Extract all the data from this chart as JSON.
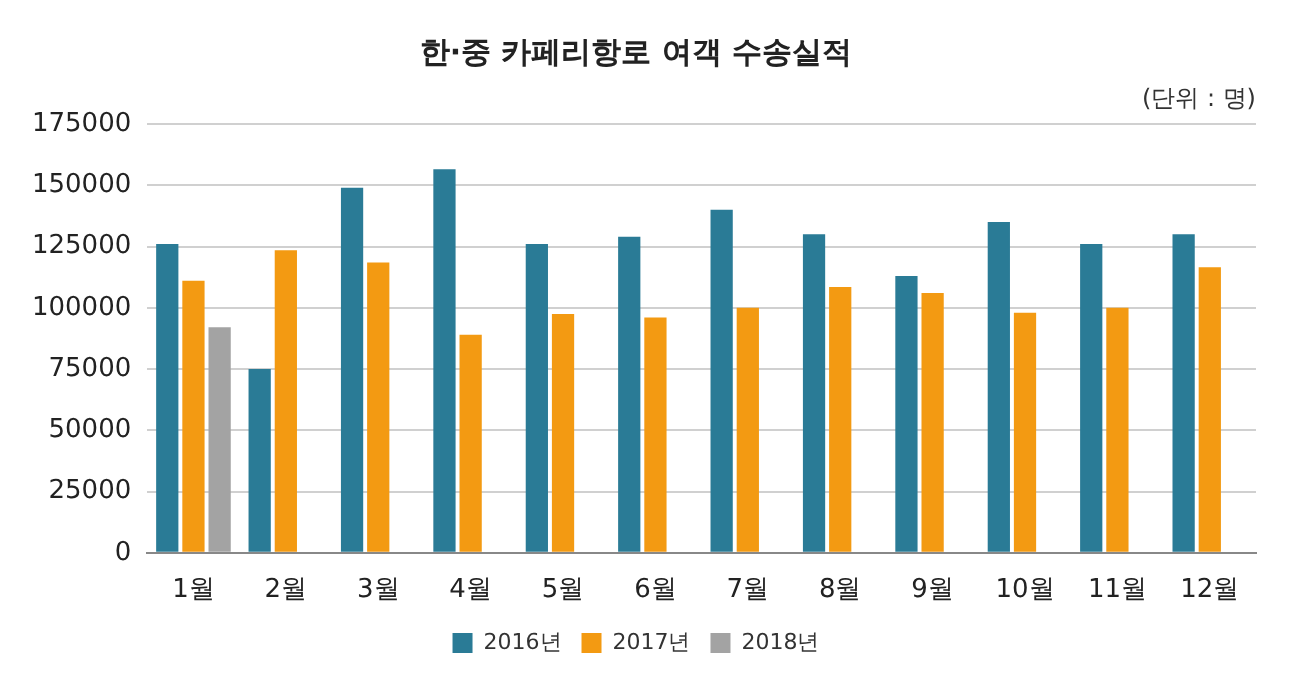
{
  "chart_data": {
    "type": "bar",
    "title": "한·중 카페리항로 여객 수송실적",
    "annotations": [
      "(단위 : 명)"
    ],
    "categories": [
      "1월",
      "2월",
      "3월",
      "4월",
      "5월",
      "6월",
      "7월",
      "8월",
      "9월",
      "10월",
      "11월",
      "12월"
    ],
    "series": [
      {
        "name": "2016년",
        "color": "#2a7b96",
        "values": [
          126000,
          75000,
          149000,
          156500,
          126000,
          129000,
          140000,
          130000,
          113000,
          135000,
          126000,
          130000
        ]
      },
      {
        "name": "2017년",
        "color": "#f39a12",
        "values": [
          111000,
          123500,
          118500,
          89000,
          97500,
          96000,
          100000,
          108500,
          106000,
          98000,
          100000,
          116500
        ]
      },
      {
        "name": "2018년",
        "color": "#a3a3a3",
        "values": [
          92000,
          null,
          null,
          null,
          null,
          null,
          null,
          null,
          null,
          null,
          null,
          null
        ]
      }
    ],
    "ylim": [
      0,
      175000
    ],
    "yticks": [
      0,
      25000,
      50000,
      75000,
      100000,
      125000,
      150000,
      175000
    ],
    "grid": "y",
    "legend": "bottom"
  }
}
